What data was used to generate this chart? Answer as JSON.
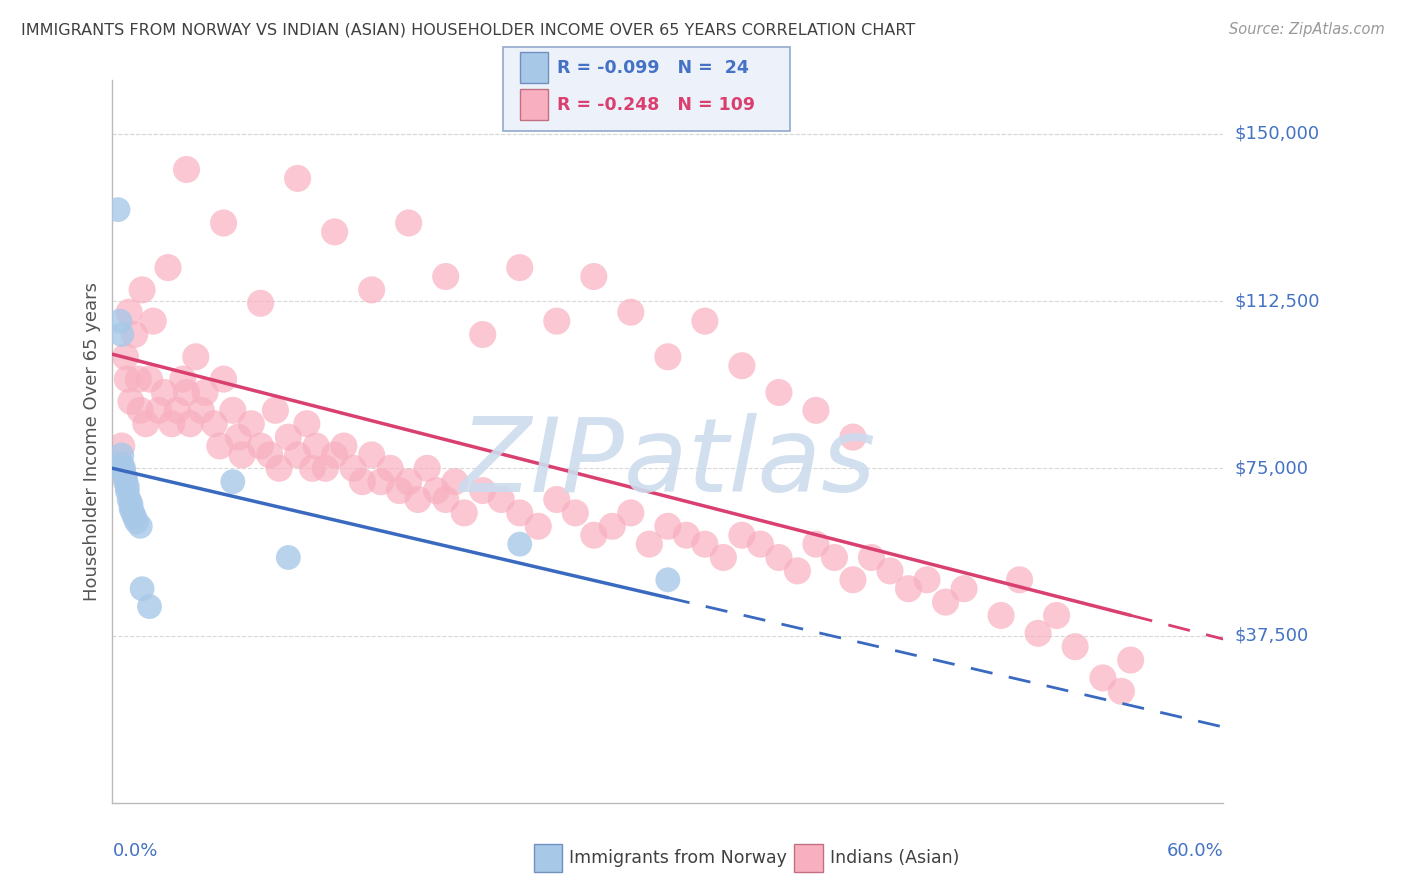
{
  "title": "IMMIGRANTS FROM NORWAY VS INDIAN (ASIAN) HOUSEHOLDER INCOME OVER 65 YEARS CORRELATION CHART",
  "source": "Source: ZipAtlas.com",
  "ylabel": "Householder Income Over 65 years",
  "xlim": [
    0.0,
    0.6
  ],
  "ylim": [
    0,
    162000
  ],
  "norway_R": -0.099,
  "norway_N": 24,
  "indian_R": -0.248,
  "indian_N": 109,
  "norway_color": "#a8c8e8",
  "indian_color": "#f8b0c0",
  "norway_line_color": "#3a6abf",
  "indian_line_color": "#d94070",
  "watermark_color": "#ccdcee",
  "title_color": "#404040",
  "axis_label_color": "#4472c4",
  "grid_color": "#d8d8d8",
  "norway_x": [
    0.003,
    0.004,
    0.005,
    0.005,
    0.005,
    0.006,
    0.006,
    0.007,
    0.007,
    0.008,
    0.008,
    0.009,
    0.01,
    0.01,
    0.011,
    0.012,
    0.013,
    0.015,
    0.016,
    0.02,
    0.065,
    0.095,
    0.22,
    0.3
  ],
  "norway_y": [
    133000,
    108000,
    105000,
    78000,
    76000,
    75000,
    74000,
    73000,
    72000,
    71000,
    70000,
    68000,
    67000,
    66000,
    65000,
    64000,
    63000,
    62000,
    48000,
    44000,
    72000,
    55000,
    58000,
    50000
  ],
  "indian_x": [
    0.005,
    0.007,
    0.008,
    0.009,
    0.01,
    0.012,
    0.014,
    0.015,
    0.016,
    0.018,
    0.02,
    0.022,
    0.025,
    0.028,
    0.03,
    0.032,
    0.035,
    0.038,
    0.04,
    0.042,
    0.045,
    0.048,
    0.05,
    0.055,
    0.058,
    0.06,
    0.065,
    0.068,
    0.07,
    0.075,
    0.08,
    0.085,
    0.088,
    0.09,
    0.095,
    0.1,
    0.105,
    0.108,
    0.11,
    0.115,
    0.12,
    0.125,
    0.13,
    0.135,
    0.14,
    0.145,
    0.15,
    0.155,
    0.16,
    0.165,
    0.17,
    0.175,
    0.18,
    0.185,
    0.19,
    0.2,
    0.21,
    0.22,
    0.23,
    0.24,
    0.25,
    0.26,
    0.27,
    0.28,
    0.29,
    0.3,
    0.31,
    0.32,
    0.33,
    0.34,
    0.35,
    0.36,
    0.37,
    0.38,
    0.39,
    0.4,
    0.41,
    0.42,
    0.43,
    0.44,
    0.45,
    0.46,
    0.48,
    0.49,
    0.5,
    0.51,
    0.52,
    0.535,
    0.545,
    0.55,
    0.04,
    0.06,
    0.08,
    0.1,
    0.12,
    0.14,
    0.16,
    0.18,
    0.2,
    0.22,
    0.24,
    0.26,
    0.28,
    0.3,
    0.32,
    0.34,
    0.36,
    0.38,
    0.4
  ],
  "indian_y": [
    80000,
    100000,
    95000,
    110000,
    90000,
    105000,
    95000,
    88000,
    115000,
    85000,
    95000,
    108000,
    88000,
    92000,
    120000,
    85000,
    88000,
    95000,
    92000,
    85000,
    100000,
    88000,
    92000,
    85000,
    80000,
    95000,
    88000,
    82000,
    78000,
    85000,
    80000,
    78000,
    88000,
    75000,
    82000,
    78000,
    85000,
    75000,
    80000,
    75000,
    78000,
    80000,
    75000,
    72000,
    78000,
    72000,
    75000,
    70000,
    72000,
    68000,
    75000,
    70000,
    68000,
    72000,
    65000,
    70000,
    68000,
    65000,
    62000,
    68000,
    65000,
    60000,
    62000,
    65000,
    58000,
    62000,
    60000,
    58000,
    55000,
    60000,
    58000,
    55000,
    52000,
    58000,
    55000,
    50000,
    55000,
    52000,
    48000,
    50000,
    45000,
    48000,
    42000,
    50000,
    38000,
    42000,
    35000,
    28000,
    25000,
    32000,
    142000,
    130000,
    112000,
    140000,
    128000,
    115000,
    130000,
    118000,
    105000,
    120000,
    108000,
    118000,
    110000,
    100000,
    108000,
    98000,
    92000,
    88000,
    82000
  ]
}
